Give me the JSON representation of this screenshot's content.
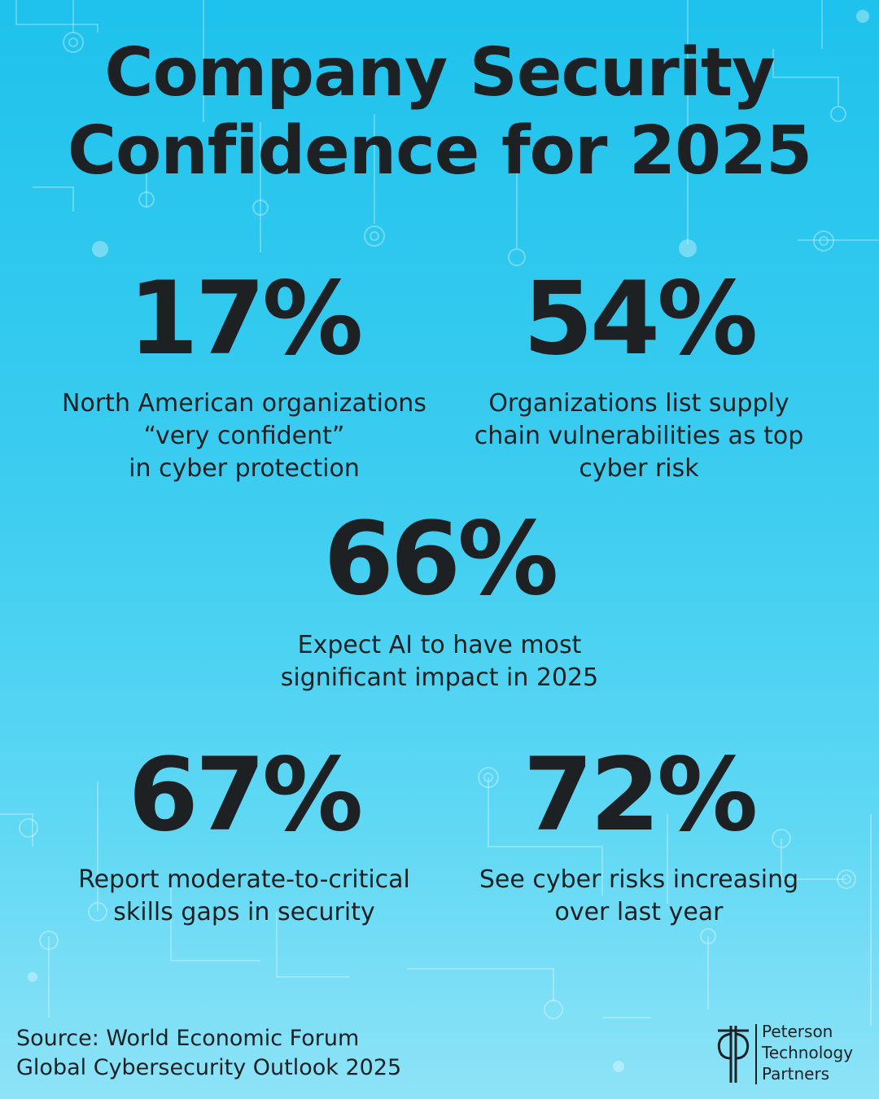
{
  "title": "Company Security\nConfidence for 2025",
  "stats": [
    {
      "value": "17%",
      "description": "North American organizations\n“very confident”\nin cyber protection"
    },
    {
      "value": "54%",
      "description": "Organizations list supply\nchain vulnerabilities as top\ncyber risk"
    },
    {
      "value": "66%",
      "description": "Expect AI to have most\nsignificant impact in 2025"
    },
    {
      "value": "67%",
      "description": "Report moderate-to-critical\nskills gaps in security"
    },
    {
      "value": "72%",
      "description": "See cyber risks increasing\nover last year"
    }
  ],
  "source": "Source: World Economic Forum\nGlobal Cybersecurity Outlook 2025",
  "logo": {
    "text": "Peterson\nTechnology\nPartners",
    "icon": "peterson-logo-icon"
  },
  "colors": {
    "background_top": "#1ec2ec",
    "background_bottom": "#8ee3f7",
    "text": "#1e2124",
    "circuit": "#ffffff"
  }
}
